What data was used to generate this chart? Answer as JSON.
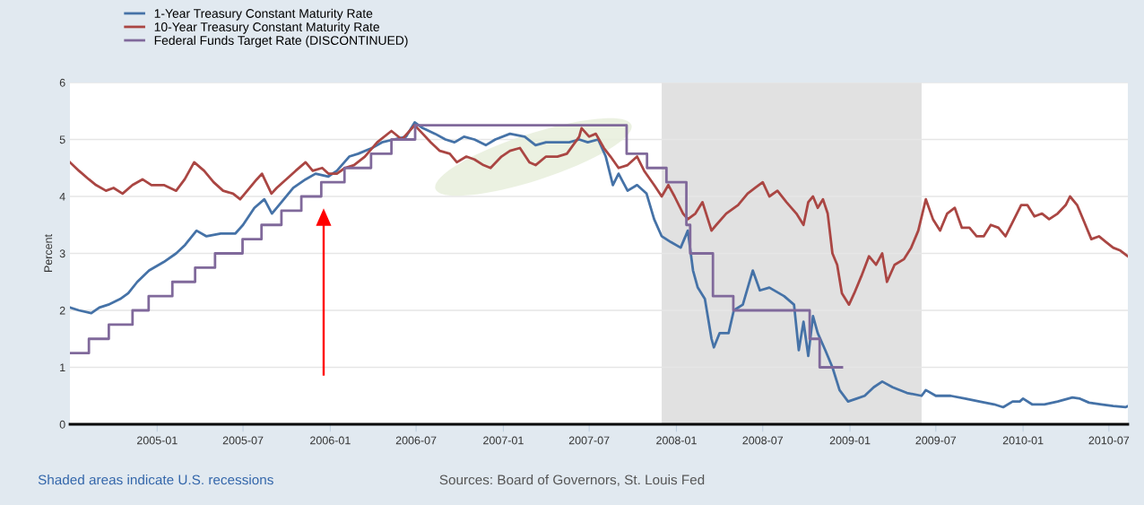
{
  "chart_data": {
    "type": "line",
    "ylabel": "Percent",
    "xlim": [
      "2004-07-01",
      "2010-08-10"
    ],
    "ylim": [
      0,
      6
    ],
    "yticks": [
      0,
      1,
      2,
      3,
      4,
      5,
      6
    ],
    "xticks": [
      {
        "value": "2005-01-01",
        "label": "2005-01"
      },
      {
        "value": "2005-07-01",
        "label": "2005-07"
      },
      {
        "value": "2006-01-01",
        "label": "2006-01"
      },
      {
        "value": "2006-07-01",
        "label": "2006-07"
      },
      {
        "value": "2007-01-01",
        "label": "2007-01"
      },
      {
        "value": "2007-07-01",
        "label": "2007-07"
      },
      {
        "value": "2008-01-01",
        "label": "2008-01"
      },
      {
        "value": "2008-07-01",
        "label": "2008-07"
      },
      {
        "value": "2009-01-01",
        "label": "2009-01"
      },
      {
        "value": "2009-07-01",
        "label": "2009-07"
      },
      {
        "value": "2010-01-01",
        "label": "2010-01"
      },
      {
        "value": "2010-07-01",
        "label": "2010-07"
      }
    ],
    "grid": "y",
    "legend": "top left",
    "bands": [
      {
        "axis": "x",
        "from": "2007-12-01",
        "to": "2009-06-01",
        "color": "#e1e1e1"
      }
    ],
    "annotations": [
      "Shaded areas indicate U.S. recessions",
      "Sources: Board of Governors, St. Louis Fed"
    ],
    "series": [
      {
        "name": "1-Year Treasury Constant Maturity Rate",
        "color": "#4572a7",
        "x": [
          "2004-07-01",
          "2004-07-20",
          "2004-08-15",
          "2004-09-01",
          "2004-09-20",
          "2004-10-15",
          "2004-11-01",
          "2004-11-20",
          "2004-12-15",
          "2005-01-15",
          "2005-02-10",
          "2005-03-01",
          "2005-03-25",
          "2005-04-15",
          "2005-05-15",
          "2005-06-15",
          "2005-07-01",
          "2005-07-25",
          "2005-08-15",
          "2005-08-31",
          "2005-09-15",
          "2005-10-15",
          "2005-11-10",
          "2005-12-01",
          "2005-12-28",
          "2006-01-15",
          "2006-02-10",
          "2006-03-01",
          "2006-03-30",
          "2006-04-20",
          "2006-05-15",
          "2006-06-10",
          "2006-06-28",
          "2006-07-15",
          "2006-08-10",
          "2006-09-01",
          "2006-09-20",
          "2006-10-10",
          "2006-11-01",
          "2006-11-25",
          "2006-12-15",
          "2007-01-15",
          "2007-02-15",
          "2007-03-10",
          "2007-04-01",
          "2007-04-25",
          "2007-05-20",
          "2007-06-10",
          "2007-06-28",
          "2007-07-20",
          "2007-08-05",
          "2007-08-20",
          "2007-09-01",
          "2007-09-20",
          "2007-10-10",
          "2007-10-30",
          "2007-11-15",
          "2007-12-01",
          "2007-12-20",
          "2008-01-10",
          "2008-01-25",
          "2008-02-05",
          "2008-02-15",
          "2008-03-01",
          "2008-03-15",
          "2008-03-20",
          "2008-04-01",
          "2008-04-20",
          "2008-05-01",
          "2008-05-20",
          "2008-06-10",
          "2008-06-25",
          "2008-07-15",
          "2008-08-15",
          "2008-09-05",
          "2008-09-15",
          "2008-09-25",
          "2008-10-05",
          "2008-10-15",
          "2008-10-25",
          "2008-11-10",
          "2008-11-25",
          "2008-12-10",
          "2008-12-28",
          "2009-01-15",
          "2009-02-01",
          "2009-02-20",
          "2009-03-10",
          "2009-04-01",
          "2009-05-01",
          "2009-06-01",
          "2009-06-10",
          "2009-07-01",
          "2009-08-01",
          "2009-09-01",
          "2009-10-01",
          "2009-11-01",
          "2009-11-20",
          "2009-12-10",
          "2009-12-25",
          "2010-01-01",
          "2010-01-20",
          "2010-02-15",
          "2010-03-15",
          "2010-04-15",
          "2010-05-01",
          "2010-05-20",
          "2010-06-15",
          "2010-07-10",
          "2010-08-05",
          "2010-08-10"
        ],
        "values": [
          2.05,
          2.0,
          1.95,
          2.05,
          2.1,
          2.2,
          2.3,
          2.5,
          2.7,
          2.85,
          3.0,
          3.15,
          3.4,
          3.3,
          3.35,
          3.35,
          3.5,
          3.8,
          3.95,
          3.7,
          3.85,
          4.15,
          4.3,
          4.4,
          4.35,
          4.45,
          4.7,
          4.75,
          4.85,
          4.95,
          5.0,
          5.05,
          5.3,
          5.2,
          5.1,
          5.0,
          4.95,
          5.05,
          5.0,
          4.9,
          5.0,
          5.1,
          5.05,
          4.9,
          4.95,
          4.95,
          4.95,
          5.0,
          4.95,
          5.0,
          4.7,
          4.2,
          4.4,
          4.1,
          4.2,
          4.05,
          3.6,
          3.3,
          3.2,
          3.1,
          3.4,
          2.7,
          2.4,
          2.2,
          1.5,
          1.35,
          1.6,
          1.6,
          2.0,
          2.1,
          2.7,
          2.35,
          2.4,
          2.25,
          2.1,
          1.3,
          1.8,
          1.2,
          1.9,
          1.6,
          1.3,
          1.0,
          0.6,
          0.4,
          0.45,
          0.5,
          0.65,
          0.75,
          0.65,
          0.55,
          0.5,
          0.6,
          0.5,
          0.5,
          0.45,
          0.4,
          0.35,
          0.3,
          0.4,
          0.4,
          0.45,
          0.35,
          0.35,
          0.4,
          0.47,
          0.45,
          0.38,
          0.35,
          0.32,
          0.3,
          0.32
        ]
      },
      {
        "name": "10-Year Treasury Constant Maturity Rate",
        "color": "#aa4643",
        "x": [
          "2004-07-01",
          "2004-07-20",
          "2004-08-10",
          "2004-08-25",
          "2004-09-15",
          "2004-10-01",
          "2004-10-20",
          "2004-11-10",
          "2004-12-01",
          "2004-12-20",
          "2005-01-15",
          "2005-02-10",
          "2005-02-28",
          "2005-03-20",
          "2005-04-10",
          "2005-04-30",
          "2005-05-20",
          "2005-06-10",
          "2005-06-25",
          "2005-07-10",
          "2005-07-30",
          "2005-08-10",
          "2005-08-30",
          "2005-09-10",
          "2005-09-30",
          "2005-10-20",
          "2005-11-10",
          "2005-11-25",
          "2005-12-15",
          "2005-12-28",
          "2006-01-15",
          "2006-02-01",
          "2006-02-20",
          "2006-03-15",
          "2006-04-10",
          "2006-05-10",
          "2006-06-01",
          "2006-06-28",
          "2006-07-15",
          "2006-08-01",
          "2006-08-20",
          "2006-09-10",
          "2006-09-25",
          "2006-10-15",
          "2006-11-01",
          "2006-11-20",
          "2006-12-05",
          "2006-12-28",
          "2007-01-15",
          "2007-02-05",
          "2007-02-25",
          "2007-03-10",
          "2007-04-01",
          "2007-04-25",
          "2007-05-15",
          "2007-06-10",
          "2007-06-15",
          "2007-07-01",
          "2007-07-15",
          "2007-08-01",
          "2007-08-15",
          "2007-09-01",
          "2007-09-20",
          "2007-10-10",
          "2007-10-25",
          "2007-11-15",
          "2007-12-01",
          "2007-12-15",
          "2007-12-28",
          "2008-01-15",
          "2008-01-25",
          "2008-02-10",
          "2008-02-25",
          "2008-03-15",
          "2008-03-25",
          "2008-04-15",
          "2008-05-10",
          "2008-05-30",
          "2008-06-15",
          "2008-07-01",
          "2008-07-15",
          "2008-08-01",
          "2008-08-20",
          "2008-09-10",
          "2008-09-25",
          "2008-10-05",
          "2008-10-15",
          "2008-10-25",
          "2008-11-05",
          "2008-11-15",
          "2008-11-25",
          "2008-12-05",
          "2008-12-15",
          "2008-12-30",
          "2009-01-10",
          "2009-01-25",
          "2009-02-10",
          "2009-02-25",
          "2009-03-10",
          "2009-03-20",
          "2009-04-05",
          "2009-04-25",
          "2009-05-10",
          "2009-05-25",
          "2009-06-10",
          "2009-06-25",
          "2009-07-10",
          "2009-07-25",
          "2009-08-10",
          "2009-08-25",
          "2009-09-10",
          "2009-09-25",
          "2009-10-10",
          "2009-10-25",
          "2009-11-10",
          "2009-11-25",
          "2009-12-10",
          "2009-12-28",
          "2010-01-10",
          "2010-01-25",
          "2010-02-10",
          "2010-02-25",
          "2010-03-15",
          "2010-04-01",
          "2010-04-10",
          "2010-04-25",
          "2010-05-10",
          "2010-05-25",
          "2010-06-10",
          "2010-06-25",
          "2010-07-10",
          "2010-07-25",
          "2010-08-10"
        ],
        "values": [
          4.6,
          4.45,
          4.3,
          4.2,
          4.1,
          4.15,
          4.05,
          4.2,
          4.3,
          4.2,
          4.2,
          4.1,
          4.3,
          4.6,
          4.45,
          4.25,
          4.1,
          4.05,
          3.95,
          4.1,
          4.3,
          4.4,
          4.05,
          4.15,
          4.3,
          4.45,
          4.6,
          4.45,
          4.5,
          4.4,
          4.4,
          4.5,
          4.55,
          4.7,
          4.95,
          5.15,
          5.0,
          5.25,
          5.1,
          4.95,
          4.8,
          4.75,
          4.6,
          4.7,
          4.65,
          4.55,
          4.5,
          4.7,
          4.8,
          4.85,
          4.6,
          4.55,
          4.7,
          4.7,
          4.75,
          5.05,
          5.2,
          5.05,
          5.1,
          4.85,
          4.7,
          4.5,
          4.55,
          4.7,
          4.45,
          4.2,
          4.0,
          4.2,
          4.0,
          3.7,
          3.6,
          3.7,
          3.9,
          3.4,
          3.5,
          3.7,
          3.85,
          4.05,
          4.15,
          4.25,
          4.0,
          4.1,
          3.9,
          3.7,
          3.5,
          3.9,
          4.0,
          3.8,
          3.95,
          3.7,
          3.0,
          2.8,
          2.3,
          2.1,
          2.3,
          2.6,
          2.95,
          2.8,
          3.0,
          2.5,
          2.8,
          2.9,
          3.1,
          3.4,
          3.95,
          3.6,
          3.4,
          3.7,
          3.8,
          3.45,
          3.45,
          3.3,
          3.3,
          3.5,
          3.45,
          3.3,
          3.55,
          3.85,
          3.85,
          3.65,
          3.7,
          3.6,
          3.7,
          3.85,
          4.0,
          3.85,
          3.55,
          3.25,
          3.3,
          3.2,
          3.1,
          3.05,
          2.95
        ]
      },
      {
        "name": "Federal Funds Target Rate (DISCONTINUED)",
        "color": "#80699b",
        "type": "step",
        "x": [
          "2004-07-01",
          "2004-08-10",
          "2004-09-21",
          "2004-11-10",
          "2004-12-14",
          "2005-02-02",
          "2005-03-22",
          "2005-05-03",
          "2005-06-30",
          "2005-08-09",
          "2005-09-20",
          "2005-11-01",
          "2005-12-13",
          "2006-01-31",
          "2006-03-28",
          "2006-05-10",
          "2006-06-29",
          "2007-09-18",
          "2007-10-31",
          "2007-12-11",
          "2008-01-22",
          "2008-01-30",
          "2008-03-18",
          "2008-04-30",
          "2008-10-08",
          "2008-10-29",
          "2008-12-15"
        ],
        "values": [
          1.25,
          1.5,
          1.75,
          2.0,
          2.25,
          2.5,
          2.75,
          3.0,
          3.25,
          3.5,
          3.75,
          4.0,
          4.25,
          4.5,
          4.75,
          5.0,
          5.25,
          4.75,
          4.5,
          4.25,
          3.5,
          3.0,
          2.25,
          2.0,
          1.5,
          1.0,
          1.0
        ]
      }
    ]
  }
}
